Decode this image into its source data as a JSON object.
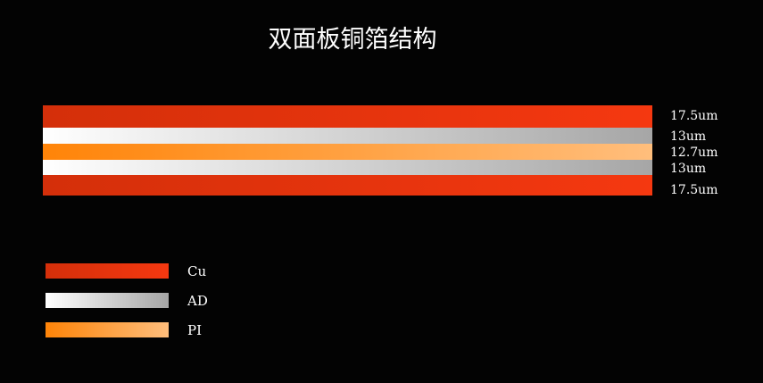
{
  "title": "双面板铜箔结构",
  "layers": [
    {
      "material": "Cu",
      "thickness": "17.5um"
    },
    {
      "material": "AD",
      "thickness": "13um"
    },
    {
      "material": "PI",
      "thickness": "12.7um"
    },
    {
      "material": "AD",
      "thickness": "13um"
    },
    {
      "material": "Cu",
      "thickness": "17.5um"
    }
  ],
  "legend": [
    {
      "label": "Cu",
      "colors": [
        "#d42f0a",
        "#f53810"
      ]
    },
    {
      "label": "AD",
      "colors": [
        "#ffffff",
        "#a6a6a6"
      ]
    },
    {
      "label": "PI",
      "colors": [
        "#ff8408",
        "#ffbe7c"
      ]
    }
  ]
}
